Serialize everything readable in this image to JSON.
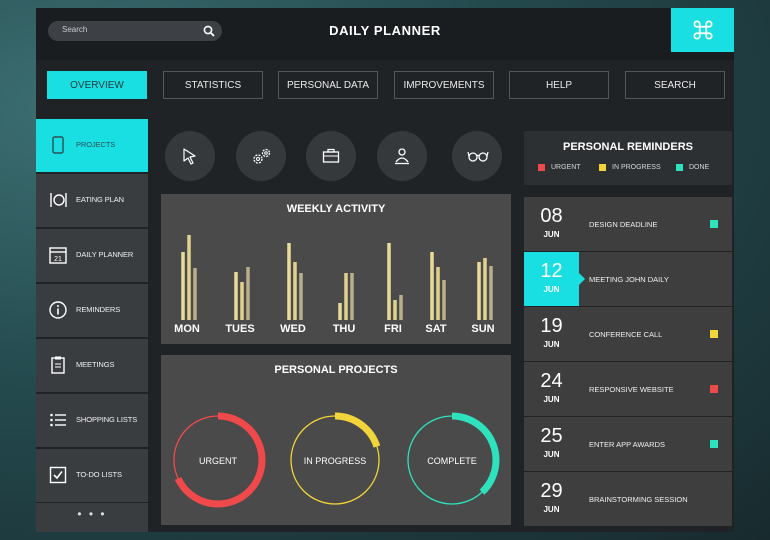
{
  "colors": {
    "accent": "#19dfe2",
    "urgent": "#f0494b",
    "in_progress": "#f2d43b",
    "done": "#2fe2be",
    "bar": "#e9dc9a"
  },
  "header": {
    "search_placeholder": "Search",
    "title": "DAILY PLANNER",
    "command_icon": "command-icon"
  },
  "nav": [
    {
      "label": "OVERVIEW",
      "active": true
    },
    {
      "label": "STATISTICS"
    },
    {
      "label": "PERSONAL DATA"
    },
    {
      "label": "IMPROVEMENTS"
    },
    {
      "label": "HELP"
    },
    {
      "label": "SEARCH"
    }
  ],
  "sidebar": {
    "items": [
      {
        "label": "PROJECTS",
        "icon": "tablet-icon",
        "active": true
      },
      {
        "label": "EATING PLAN",
        "icon": "cutlery-icon"
      },
      {
        "label": "DAILY PLANNER",
        "icon": "calendar-icon"
      },
      {
        "label": "REMINDERS",
        "icon": "info-icon"
      },
      {
        "label": "MEETINGS",
        "icon": "clipboard-icon"
      },
      {
        "label": "SHOPPING LISTS",
        "icon": "list-icon"
      },
      {
        "label": "TO-DO LISTS",
        "icon": "checkbox-icon"
      }
    ],
    "more": "• • •"
  },
  "tools": [
    "cursor-icon",
    "gears-icon",
    "briefcase-icon",
    "user-upload-icon",
    "glasses-icon"
  ],
  "weekly": {
    "title": "WEEKLY ACTIVITY",
    "days": [
      "MON",
      "TUES",
      "WED",
      "THU",
      "FRI",
      "SAT",
      "SUN"
    ]
  },
  "chart_data": {
    "type": "bar",
    "title": "WEEKLY ACTIVITY",
    "categories": [
      "MON",
      "TUES",
      "WED",
      "THU",
      "FRI",
      "SAT",
      "SUN"
    ],
    "series": [
      {
        "values": [
          68,
          48,
          77,
          17,
          77,
          68,
          58
        ]
      },
      {
        "values": [
          85,
          38,
          58,
          47,
          20,
          53,
          62
        ]
      },
      {
        "values": [
          52,
          53,
          47,
          47,
          25,
          40,
          54
        ]
      }
    ],
    "ylim": [
      0,
      100
    ]
  },
  "projects": {
    "title": "PERSONAL PROJECTS",
    "rings": [
      {
        "label": "URGENT",
        "progress": 0.68,
        "color": "#f0494b"
      },
      {
        "label": "IN PROGRESS",
        "progress": 0.2,
        "color": "#f2d43b"
      },
      {
        "label": "COMPLETE",
        "progress": 0.38,
        "color": "#2fe2be"
      }
    ]
  },
  "reminders": {
    "title": "PERSONAL REMINDERS",
    "legend": [
      {
        "label": "URGENT",
        "color": "#f0494b"
      },
      {
        "label": "IN PROGRESS",
        "color": "#f2d43b"
      },
      {
        "label": "DONE",
        "color": "#2fe2be"
      }
    ],
    "items": [
      {
        "day": "08",
        "month": "JUN",
        "text": "DESIGN DEADLINE",
        "status": "#2fe2be"
      },
      {
        "day": "12",
        "month": "JUN",
        "text": "MEETING JOHN DAILY",
        "active": true
      },
      {
        "day": "19",
        "month": "JUN",
        "text": "CONFERENCE CALL",
        "status": "#f2d43b"
      },
      {
        "day": "24",
        "month": "JUN",
        "text": "RESPONSIVE WEBSITE",
        "status": "#f0494b"
      },
      {
        "day": "25",
        "month": "JUN",
        "text": "ENTER APP AWARDS",
        "status": "#2fe2be"
      },
      {
        "day": "29",
        "month": "JUN",
        "text": "BRAINSTORMING SESSION"
      }
    ]
  }
}
